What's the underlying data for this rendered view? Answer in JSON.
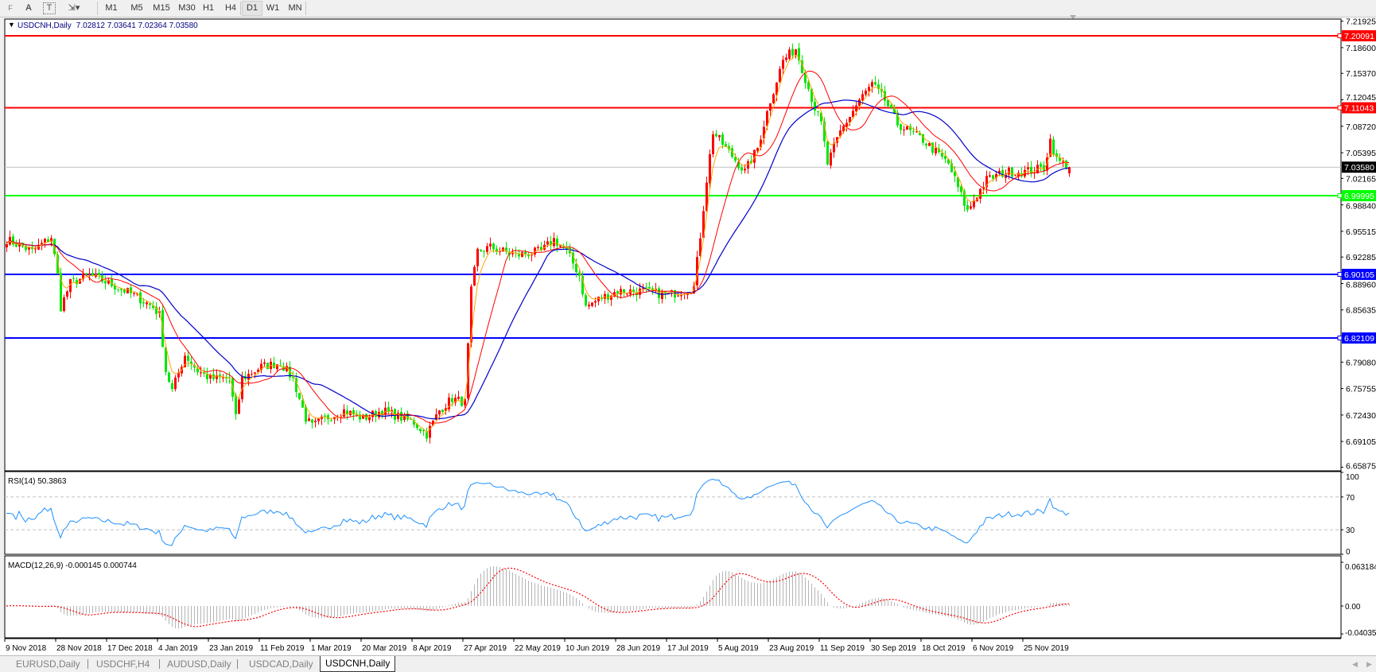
{
  "toolbar": {
    "tools": [
      {
        "icon": "periods-grid-icon",
        "label": "F"
      },
      {
        "icon": "text-icon",
        "label": "A"
      },
      {
        "icon": "text-label-icon",
        "label": "T"
      },
      {
        "icon": "arrows-dropdown-icon",
        "label": "▾"
      }
    ],
    "timeframes": [
      "M1",
      "M5",
      "M15",
      "M30",
      "H1",
      "H4",
      "D1",
      "W1",
      "MN"
    ],
    "active_timeframe": "D1"
  },
  "chart": {
    "symbol_title": "USDCNH,Daily",
    "ohlc": "7.02812 7.03641 7.02364 7.03580",
    "current_price": "7.03580",
    "price_ticks": [
      "7.21925",
      "7.18600",
      "7.15370",
      "7.12045",
      "7.08720",
      "7.05395",
      "7.02165",
      "6.98840",
      "6.95515",
      "6.92285",
      "6.88960",
      "6.85635",
      "6.79080",
      "6.75755",
      "6.72430",
      "6.69105",
      "6.65875"
    ],
    "horizontal_lines": [
      {
        "price": "7.20091",
        "color": "#ff0000"
      },
      {
        "price": "7.11043",
        "color": "#ff0000"
      },
      {
        "price": "6.99995",
        "color": "#00ff00"
      },
      {
        "price": "6.90105",
        "color": "#0000ff"
      },
      {
        "price": "6.82109",
        "color": "#0000ff"
      }
    ],
    "colors": {
      "up_candle": "#ff0000",
      "down_candle": "#00e600",
      "ma_fast": "#ffa500",
      "ma_mid": "#ff0000",
      "ma_slow": "#0000cc",
      "rsi": "#1e90ff",
      "macd_hist": "#b4b4b4",
      "macd_signal": "#ff0000"
    }
  },
  "chart_data": {
    "type": "candlestick",
    "approx_close_path": [
      [
        0,
        6.945
      ],
      [
        8,
        6.93
      ],
      [
        14,
        6.948
      ],
      [
        16,
        6.9
      ],
      [
        17,
        6.86
      ],
      [
        20,
        6.89
      ],
      [
        26,
        6.9
      ],
      [
        32,
        6.89
      ],
      [
        40,
        6.875
      ],
      [
        46,
        6.86
      ],
      [
        48,
        6.85
      ],
      [
        50,
        6.78
      ],
      [
        52,
        6.755
      ],
      [
        56,
        6.8
      ],
      [
        60,
        6.78
      ],
      [
        64,
        6.77
      ],
      [
        70,
        6.77
      ],
      [
        72,
        6.72
      ],
      [
        74,
        6.77
      ],
      [
        80,
        6.785
      ],
      [
        86,
        6.79
      ],
      [
        90,
        6.77
      ],
      [
        94,
        6.72
      ],
      [
        96,
        6.71
      ],
      [
        100,
        6.72
      ],
      [
        106,
        6.73
      ],
      [
        112,
        6.72
      ],
      [
        118,
        6.73
      ],
      [
        128,
        6.715
      ],
      [
        132,
        6.7
      ],
      [
        136,
        6.73
      ],
      [
        140,
        6.745
      ],
      [
        144,
        6.74
      ],
      [
        146,
        6.88
      ],
      [
        148,
        6.93
      ],
      [
        152,
        6.935
      ],
      [
        160,
        6.925
      ],
      [
        168,
        6.93
      ],
      [
        172,
        6.945
      ],
      [
        176,
        6.93
      ],
      [
        180,
        6.9
      ],
      [
        182,
        6.86
      ],
      [
        186,
        6.87
      ],
      [
        192,
        6.88
      ],
      [
        200,
        6.88
      ],
      [
        208,
        6.875
      ],
      [
        216,
        6.885
      ],
      [
        218,
        6.95
      ],
      [
        220,
        7.02
      ],
      [
        222,
        7.08
      ],
      [
        224,
        7.07
      ],
      [
        228,
        7.05
      ],
      [
        232,
        7.03
      ],
      [
        236,
        7.06
      ],
      [
        240,
        7.12
      ],
      [
        244,
        7.17
      ],
      [
        248,
        7.185
      ],
      [
        250,
        7.16
      ],
      [
        254,
        7.11
      ],
      [
        256,
        7.09
      ],
      [
        258,
        7.04
      ],
      [
        262,
        7.08
      ],
      [
        268,
        7.12
      ],
      [
        272,
        7.14
      ],
      [
        276,
        7.12
      ],
      [
        280,
        7.09
      ],
      [
        284,
        7.08
      ],
      [
        288,
        7.07
      ],
      [
        296,
        7.04
      ],
      [
        300,
        7.0
      ],
      [
        302,
        6.98
      ],
      [
        304,
        6.995
      ],
      [
        308,
        7.02
      ],
      [
        314,
        7.03
      ],
      [
        320,
        7.03
      ],
      [
        326,
        7.035
      ],
      [
        328,
        7.07
      ],
      [
        330,
        7.045
      ],
      [
        334,
        7.0358
      ]
    ],
    "x_tick_labels": [
      "9 Nov 2018",
      "28 Nov 2018",
      "17 Dec 2018",
      "4 Jan 2019",
      "23 Jan 2019",
      "11 Feb 2019",
      "1 Mar 2019",
      "20 Mar 2019",
      "8 Apr 2019",
      "27 Apr 2019",
      "22 May 2019",
      "10 Jun 2019",
      "28 Jun 2019",
      "17 Jul 2019",
      "5 Aug 2019",
      "23 Aug 2019",
      "11 Sep 2019",
      "30 Sep 2019",
      "18 Oct 2019",
      "6 Nov 2019",
      "25 Nov 2019"
    ],
    "ylim": [
      6.65875,
      7.21925
    ]
  },
  "rsi": {
    "label": "RSI(14) 50.3863",
    "ticks": [
      "100",
      "70",
      "30",
      "0"
    ],
    "levels": [
      70,
      30
    ]
  },
  "macd": {
    "label": "MACD(12,26,9) -0.000145 0.000744",
    "ticks": [
      "0.063184",
      "0.00",
      "-0.040355"
    ]
  },
  "tabs": [
    {
      "label": "EURUSD,Daily",
      "active": false
    },
    {
      "label": "USDCHF,H4",
      "active": false
    },
    {
      "label": "AUDUSD,Daily",
      "active": false
    },
    {
      "label": "USDCAD,Daily",
      "active": false
    },
    {
      "label": "USDCNH,Daily",
      "active": true
    }
  ]
}
